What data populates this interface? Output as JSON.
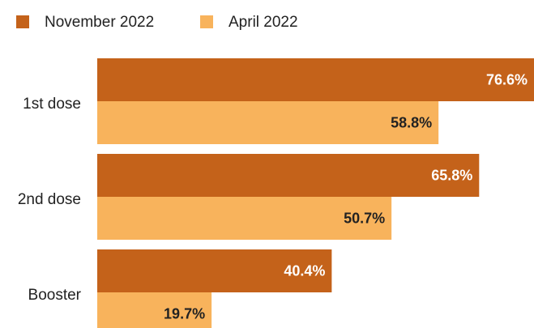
{
  "chart_data": {
    "type": "hbar",
    "categories": [
      "1st dose",
      "2nd dose",
      "Booster"
    ],
    "series": [
      {
        "name": "November 2022",
        "color": "#c4621a",
        "values": [
          76.6,
          65.8,
          40.4
        ],
        "value_labels": [
          "76.6%",
          "65.8%",
          "40.4%"
        ],
        "label_color": "#ffffff"
      },
      {
        "name": "April 2022",
        "color": "#f8b35c",
        "values": [
          58.8,
          50.7,
          19.7
        ],
        "value_labels": [
          "58.8%",
          "50.7%",
          "19.7%"
        ],
        "label_color": "#222222"
      }
    ],
    "xlim": [
      0,
      80
    ]
  }
}
